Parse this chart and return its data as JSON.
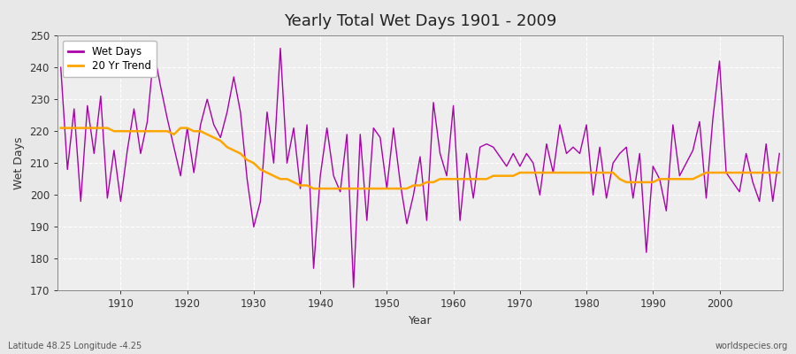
{
  "title": "Yearly Total Wet Days 1901 - 2009",
  "xlabel": "Year",
  "ylabel": "Wet Days",
  "subtitle": "Latitude 48.25 Longitude -4.25",
  "watermark": "worldspecies.org",
  "line_color": "#AA00AA",
  "trend_color": "#FFA500",
  "bg_color": "#E8E8E8",
  "plot_bg_color": "#EEEEEE",
  "grid_color": "#FFFFFF",
  "ylim": [
    170,
    250
  ],
  "xlim": [
    1901,
    2009
  ],
  "years": [
    1901,
    1902,
    1903,
    1904,
    1905,
    1906,
    1907,
    1908,
    1909,
    1910,
    1911,
    1912,
    1913,
    1914,
    1915,
    1916,
    1917,
    1918,
    1919,
    1920,
    1921,
    1922,
    1923,
    1924,
    1925,
    1926,
    1927,
    1928,
    1929,
    1930,
    1931,
    1932,
    1933,
    1934,
    1935,
    1936,
    1937,
    1938,
    1939,
    1940,
    1941,
    1942,
    1943,
    1944,
    1945,
    1946,
    1947,
    1948,
    1949,
    1950,
    1951,
    1952,
    1953,
    1954,
    1955,
    1956,
    1957,
    1958,
    1959,
    1960,
    1961,
    1962,
    1963,
    1964,
    1965,
    1966,
    1967,
    1968,
    1969,
    1970,
    1971,
    1972,
    1973,
    1974,
    1975,
    1976,
    1977,
    1978,
    1979,
    1980,
    1981,
    1982,
    1983,
    1984,
    1985,
    1986,
    1987,
    1988,
    1989,
    1990,
    1991,
    1992,
    1993,
    1994,
    1995,
    1996,
    1997,
    1998,
    1999,
    2000,
    2001,
    2002,
    2003,
    2004,
    2005,
    2006,
    2007,
    2008,
    2009
  ],
  "wet_days": [
    240,
    208,
    227,
    198,
    228,
    213,
    231,
    199,
    214,
    198,
    214,
    227,
    213,
    223,
    245,
    234,
    224,
    215,
    206,
    221,
    207,
    222,
    230,
    222,
    218,
    226,
    237,
    226,
    205,
    190,
    198,
    226,
    210,
    246,
    210,
    221,
    202,
    222,
    177,
    206,
    221,
    206,
    201,
    219,
    171,
    219,
    192,
    221,
    218,
    202,
    221,
    204,
    191,
    200,
    212,
    192,
    229,
    213,
    206,
    228,
    192,
    213,
    199,
    215,
    216,
    215,
    212,
    209,
    213,
    209,
    213,
    210,
    200,
    216,
    207,
    222,
    213,
    215,
    213,
    222,
    200,
    215,
    199,
    210,
    213,
    215,
    199,
    213,
    182,
    209,
    205,
    195,
    222,
    206,
    210,
    214,
    223,
    199,
    224,
    242,
    207,
    204,
    201,
    213,
    204,
    198,
    216,
    198,
    213
  ],
  "trend": [
    221,
    221,
    221,
    221,
    221,
    221,
    221,
    221,
    220,
    220,
    220,
    220,
    220,
    220,
    220,
    220,
    220,
    219,
    221,
    221,
    220,
    220,
    219,
    218,
    217,
    215,
    214,
    213,
    211,
    210,
    208,
    207,
    206,
    205,
    205,
    204,
    203,
    203,
    202,
    202,
    202,
    202,
    202,
    202,
    202,
    202,
    202,
    202,
    202,
    202,
    202,
    202,
    202,
    203,
    203,
    204,
    204,
    205,
    205,
    205,
    205,
    205,
    205,
    205,
    205,
    206,
    206,
    206,
    206,
    207,
    207,
    207,
    207,
    207,
    207,
    207,
    207,
    207,
    207,
    207,
    207,
    207,
    207,
    207,
    205,
    204,
    204,
    204,
    204,
    204,
    205,
    205,
    205,
    205,
    205,
    205,
    206,
    207,
    207,
    207,
    207,
    207,
    207,
    207,
    207,
    207,
    207,
    207,
    207
  ]
}
